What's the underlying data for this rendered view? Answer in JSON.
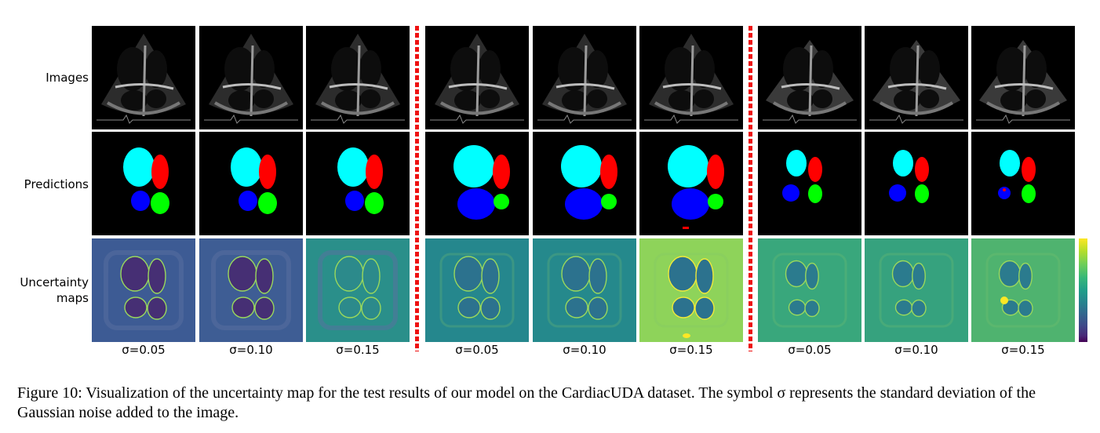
{
  "row_labels": {
    "images": "Images",
    "predictions": "Predictions",
    "uncertainty_line1": "Uncertainty",
    "uncertainty_line2": "maps"
  },
  "columns": [
    {
      "group": 1,
      "sigma_label": "σ=0.05"
    },
    {
      "group": 1,
      "sigma_label": "σ=0.10"
    },
    {
      "group": 1,
      "sigma_label": "σ=0.15"
    },
    {
      "group": 2,
      "sigma_label": "σ=0.05"
    },
    {
      "group": 2,
      "sigma_label": "σ=0.10"
    },
    {
      "group": 2,
      "sigma_label": "σ=0.15"
    },
    {
      "group": 3,
      "sigma_label": "σ=0.05"
    },
    {
      "group": 3,
      "sigma_label": "σ=0.10"
    },
    {
      "group": 3,
      "sigma_label": "σ=0.15"
    }
  ],
  "segmentation_colors": {
    "chamber_upper_left": "#00ffff",
    "chamber_upper_right": "#ff0000",
    "chamber_lower_left": "#0000ff",
    "chamber_lower_right": "#00ff00"
  },
  "colormap": "viridis",
  "caption": "Figure 10: Visualization of the uncertainty map for the test results of our model on the CardiacUDA dataset. The symbol σ represents the standard deviation of the Gaussian noise added to the image."
}
